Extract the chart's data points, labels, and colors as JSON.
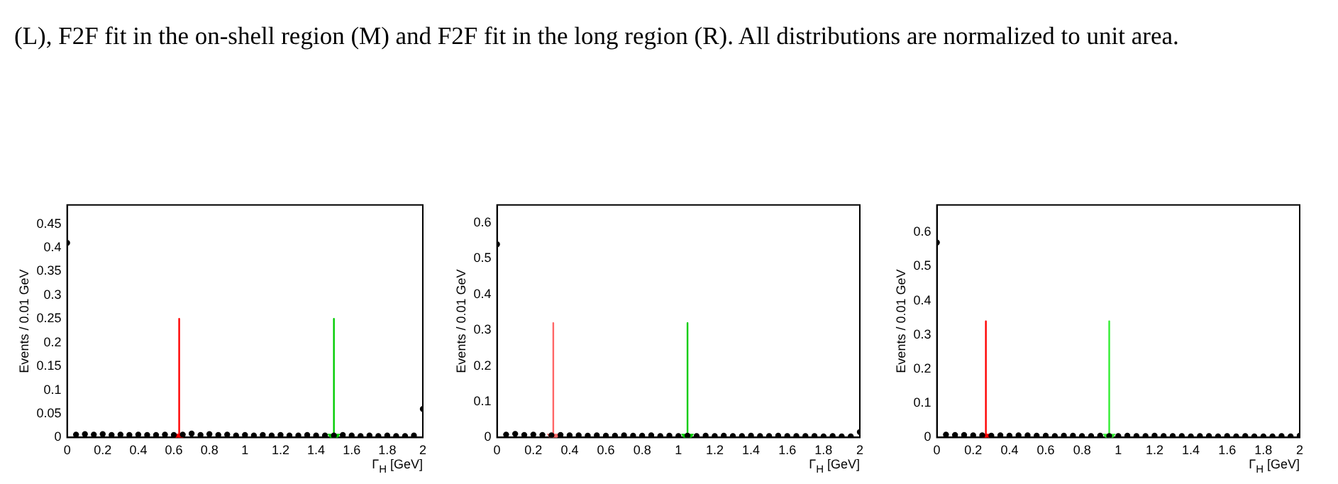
{
  "chart_data": [
    {
      "type": "other",
      "annotations": [
        "(L), F2F fit in the on-shell region (M) and F2F fit in the long region (R). All distributions are normalized to unit area."
      ]
    },
    {
      "type": "scatter",
      "xlabel": "Γ$_{H}$ [GeV]",
      "ylabel": "Events / 0.01 GeV",
      "xlim": [
        0,
        2
      ],
      "xticks": [
        0,
        0.2,
        0.4,
        0.6,
        0.8,
        1,
        1.2,
        1.4,
        1.6,
        1.8,
        2
      ],
      "ylim": [
        0,
        0.49
      ],
      "yticks": [
        0,
        0.05,
        0.1,
        0.15,
        0.2,
        0.25,
        0.3,
        0.35,
        0.4,
        0.45
      ],
      "grid": false,
      "legend": false,
      "series": [
        {
          "color": "#000000",
          "marker": "circle",
          "x": [
            0,
            0.05,
            0.1,
            0.15,
            0.2,
            0.25,
            0.3,
            0.35,
            0.4,
            0.45,
            0.5,
            0.55,
            0.6,
            0.65,
            0.7,
            0.75,
            0.8,
            0.85,
            0.9,
            0.95,
            1,
            1.05,
            1.1,
            1.15,
            1.2,
            1.25,
            1.3,
            1.35,
            1.4,
            1.45,
            1.5,
            1.55,
            1.6,
            1.65,
            1.7,
            1.75,
            1.8,
            1.85,
            1.9,
            1.95,
            2
          ],
          "values": [
            0.41,
            0.006,
            0.007,
            0.006,
            0.007,
            0.005,
            0.006,
            0.005,
            0.006,
            0.005,
            0.005,
            0.006,
            0.005,
            0.006,
            0.008,
            0.005,
            0.007,
            0.005,
            0.006,
            0.004,
            0.005,
            0.004,
            0.005,
            0.004,
            0.005,
            0.004,
            0.004,
            0.005,
            0.004,
            0.004,
            0.004,
            0.005,
            0.004,
            0.003,
            0.004,
            0.003,
            0.004,
            0.003,
            0.003,
            0.004,
            0.06
          ]
        },
        {
          "type": "line",
          "color": "#ff0000",
          "marker": "triangle",
          "x": [
            0.63,
            0.63
          ],
          "values": [
            0.25,
            0
          ]
        },
        {
          "type": "line",
          "color": "#00cc00",
          "marker": "triangle",
          "x": [
            1.5,
            1.5
          ],
          "values": [
            0.25,
            0
          ]
        }
      ]
    },
    {
      "type": "scatter",
      "xlabel": "Γ$_{H}$ [GeV]",
      "ylabel": "Events / 0.01 GeV",
      "xlim": [
        0,
        2
      ],
      "xticks": [
        0,
        0.2,
        0.4,
        0.6,
        0.8,
        1,
        1.2,
        1.4,
        1.6,
        1.8,
        2
      ],
      "ylim": [
        0,
        0.65
      ],
      "yticks": [
        0,
        0.1,
        0.2,
        0.3,
        0.4,
        0.5,
        0.6
      ],
      "grid": false,
      "legend": false,
      "series": [
        {
          "color": "#000000",
          "marker": "circle",
          "x": [
            0,
            0.05,
            0.1,
            0.15,
            0.2,
            0.25,
            0.3,
            0.35,
            0.4,
            0.45,
            0.5,
            0.55,
            0.6,
            0.65,
            0.7,
            0.75,
            0.8,
            0.85,
            0.9,
            0.95,
            1,
            1.05,
            1.1,
            1.15,
            1.2,
            1.25,
            1.3,
            1.35,
            1.4,
            1.45,
            1.5,
            1.55,
            1.6,
            1.65,
            1.7,
            1.75,
            1.8,
            1.85,
            1.9,
            1.95,
            2
          ],
          "values": [
            0.54,
            0.008,
            0.01,
            0.007,
            0.008,
            0.007,
            0.006,
            0.007,
            0.006,
            0.006,
            0.005,
            0.006,
            0.005,
            0.005,
            0.006,
            0.005,
            0.005,
            0.006,
            0.004,
            0.005,
            0.004,
            0.005,
            0.004,
            0.005,
            0.004,
            0.005,
            0.004,
            0.004,
            0.005,
            0.004,
            0.004,
            0.005,
            0.004,
            0.004,
            0.004,
            0.004,
            0.003,
            0.004,
            0.003,
            0.003,
            0.015
          ]
        },
        {
          "type": "line",
          "color": "#ff6666",
          "marker": "triangle",
          "x": [
            0.31,
            0.31
          ],
          "values": [
            0.32,
            0
          ]
        },
        {
          "type": "line",
          "color": "#00cc00",
          "marker": "triangle",
          "x": [
            1.05,
            1.05
          ],
          "values": [
            0.32,
            0
          ]
        }
      ]
    },
    {
      "type": "scatter",
      "xlabel": "Γ$_{H}$ [GeV]",
      "ylabel": "Events / 0.01 GeV",
      "xlim": [
        0,
        2
      ],
      "xticks": [
        0,
        0.2,
        0.4,
        0.6,
        0.8,
        1,
        1.2,
        1.4,
        1.6,
        1.8,
        2
      ],
      "ylim": [
        0,
        0.68
      ],
      "yticks": [
        0,
        0.1,
        0.2,
        0.3,
        0.4,
        0.5,
        0.6
      ],
      "grid": false,
      "legend": false,
      "series": [
        {
          "color": "#000000",
          "marker": "circle",
          "x": [
            0,
            0.05,
            0.1,
            0.15,
            0.2,
            0.25,
            0.3,
            0.35,
            0.4,
            0.45,
            0.5,
            0.55,
            0.6,
            0.65,
            0.7,
            0.75,
            0.8,
            0.85,
            0.9,
            0.95,
            1,
            1.05,
            1.1,
            1.15,
            1.2,
            1.25,
            1.3,
            1.35,
            1.4,
            1.45,
            1.5,
            1.55,
            1.6,
            1.65,
            1.7,
            1.75,
            1.8,
            1.85,
            1.9,
            1.95,
            2
          ],
          "values": [
            0.57,
            0.008,
            0.007,
            0.007,
            0.006,
            0.006,
            0.005,
            0.006,
            0.005,
            0.006,
            0.006,
            0.005,
            0.005,
            0.004,
            0.005,
            0.005,
            0.004,
            0.004,
            0.005,
            0.004,
            0.004,
            0.005,
            0.004,
            0.004,
            0.005,
            0.004,
            0.004,
            0.004,
            0.003,
            0.004,
            0.004,
            0.003,
            0.004,
            0.003,
            0.004,
            0.003,
            0.003,
            0.003,
            0.004,
            0.003,
            0.005
          ]
        },
        {
          "type": "line",
          "color": "#ff0000",
          "marker": "triangle",
          "x": [
            0.27,
            0.27
          ],
          "values": [
            0.34,
            0
          ]
        },
        {
          "type": "line",
          "color": "#33ee33",
          "marker": "triangle",
          "x": [
            0.95,
            0.95
          ],
          "values": [
            0.34,
            0
          ]
        }
      ]
    }
  ]
}
